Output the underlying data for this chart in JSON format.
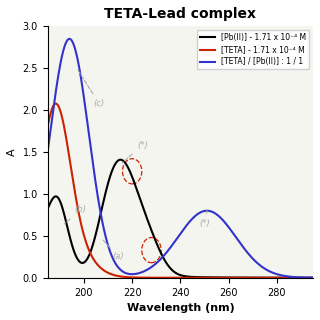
{
  "title": "TETA-Lead complex",
  "xlabel": "Wavelength (nm)",
  "ylabel": "A",
  "xlim": [
    185,
    295
  ],
  "ylim": [
    0.0,
    3.0
  ],
  "yticks": [
    0.0,
    0.5,
    1.0,
    1.5,
    2.0,
    2.5,
    3.0
  ],
  "xticks": [
    200,
    220,
    240,
    260,
    280
  ],
  "legend": [
    "[Pb(II)] - 1.71 x 10⁻⁴ M",
    "[TETA] - 1.71 x 10⁻⁴ M",
    "[TETA] / [Pb(II)] : 1 / 1"
  ],
  "legend_colors": [
    "black",
    "#cc2200",
    "#3333cc"
  ],
  "background_color": "#f5f5f0"
}
